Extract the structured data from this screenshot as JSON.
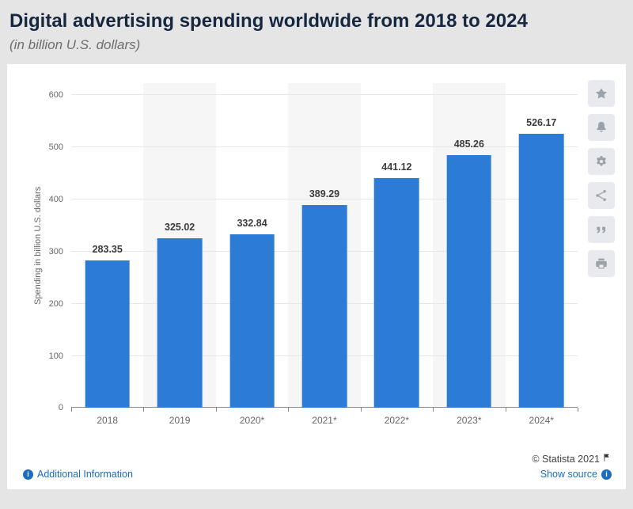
{
  "header": {
    "title": "Digital advertising spending worldwide from 2018 to 2024",
    "subtitle": "(in billion U.S. dollars)"
  },
  "chart_data": {
    "type": "bar",
    "title": "Digital advertising spending worldwide from 2018 to 2024",
    "subtitle": "(in billion U.S. dollars)",
    "categories": [
      "2018",
      "2019",
      "2020*",
      "2021*",
      "2022*",
      "2023*",
      "2024*"
    ],
    "values": [
      283.35,
      325.02,
      332.84,
      389.29,
      441.12,
      485.26,
      526.17
    ],
    "value_labels": [
      "283.35",
      "325.02",
      "332.84",
      "389.29",
      "441.12",
      "485.26",
      "526.17"
    ],
    "xlabel": "",
    "ylabel": "Spending in billion U.S. dollars",
    "ylim": [
      0,
      600
    ],
    "ytick_step": 100,
    "yticks": [
      0,
      100,
      200,
      300,
      400,
      500,
      600
    ],
    "grid": true,
    "legend": "none",
    "bar_color": "#2c7bd4"
  },
  "sidebar": {
    "buttons": [
      {
        "name": "favorite-button",
        "icon": "star-icon"
      },
      {
        "name": "notification-button",
        "icon": "bell-icon"
      },
      {
        "name": "settings-button",
        "icon": "gear-icon"
      },
      {
        "name": "share-button",
        "icon": "share-icon"
      },
      {
        "name": "cite-button",
        "icon": "quote-icon"
      },
      {
        "name": "print-button",
        "icon": "print-icon"
      }
    ]
  },
  "footer": {
    "additional_info_label": "Additional Information",
    "copyright": "© Statista 2021",
    "show_source_label": "Show source"
  },
  "colors": {
    "bar": "#2c7bd4",
    "link": "#1a6dc0",
    "title_text": "#16273f",
    "page_background": "#e5e5e5",
    "card_background": "#ffffff"
  }
}
